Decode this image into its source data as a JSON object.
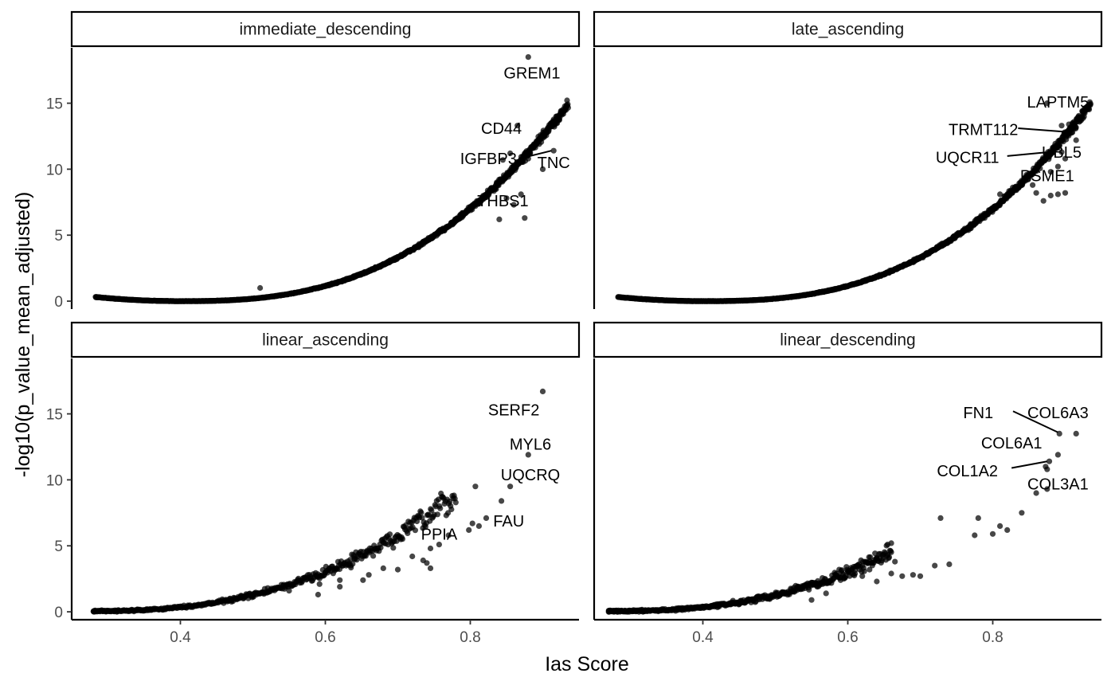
{
  "chart_data": {
    "type": "scatter",
    "facet_layout": "2x2",
    "x_label": "Ias Score",
    "y_label": "-log10(p_value_mean_adjusted)",
    "xlim": [
      0.25,
      0.95
    ],
    "ylim": [
      -0.6,
      19.2
    ],
    "x_ticks": [
      0.4,
      0.6,
      0.8
    ],
    "y_ticks": [
      0,
      5,
      10,
      15
    ],
    "x_tick_labels": [
      "0.4",
      "0.6",
      "0.8"
    ],
    "y_tick_labels": [
      "0",
      "5",
      "10",
      "15"
    ],
    "grid": false,
    "point_color": "#000000",
    "panels": [
      {
        "name": "immediate_descending",
        "shape": "u-curve",
        "curve": {
          "x_start": 0.283,
          "x_end": 0.935,
          "count": 1300,
          "jitter": 0.06
        },
        "highlights": [
          [
            0.88,
            18.5
          ],
          [
            0.865,
            13.3
          ],
          [
            0.845,
            10.7
          ],
          [
            0.855,
            11.2
          ],
          [
            0.895,
            11.9
          ],
          [
            0.915,
            11.4
          ],
          [
            0.88,
            10.8
          ],
          [
            0.9,
            10.0
          ],
          [
            0.51,
            1.0
          ],
          [
            0.87,
            8.1
          ],
          [
            0.85,
            7.8
          ],
          [
            0.86,
            7.3
          ],
          [
            0.84,
            6.2
          ],
          [
            0.875,
            6.3
          ]
        ],
        "labels": [
          {
            "text": "GREM1",
            "x": 0.885,
            "y": 17.3
          },
          {
            "text": "CD44",
            "x": 0.843,
            "y": 13.1
          },
          {
            "text": "IGFBP3",
            "x": 0.825,
            "y": 10.8
          },
          {
            "text": "TNC",
            "x": 0.915,
            "y": 10.5
          },
          {
            "text": "THBS1",
            "x": 0.845,
            "y": 7.6
          }
        ]
      },
      {
        "name": "late_ascending",
        "shape": "u-curve",
        "curve": {
          "x_start": 0.283,
          "x_end": 0.935,
          "count": 1300,
          "jitter": 0.06
        },
        "highlights": [
          [
            0.875,
            15.0
          ],
          [
            0.895,
            13.3
          ],
          [
            0.905,
            13.4
          ],
          [
            0.91,
            12.8
          ],
          [
            0.915,
            12.2
          ],
          [
            0.88,
            11.2
          ],
          [
            0.895,
            11.3
          ],
          [
            0.89,
            10.2
          ],
          [
            0.9,
            10.8
          ],
          [
            0.88,
            9.8
          ],
          [
            0.855,
            8.8
          ],
          [
            0.86,
            8.2
          ],
          [
            0.88,
            8.0
          ],
          [
            0.89,
            8.1
          ],
          [
            0.9,
            8.2
          ],
          [
            0.81,
            8.1
          ],
          [
            0.87,
            7.6
          ]
        ],
        "labels": [
          {
            "text": "LAPTM5",
            "x": 0.89,
            "y": 15.1
          },
          {
            "text": "TRMT112",
            "x": 0.787,
            "y": 13.0
          },
          {
            "text": "UBL5",
            "x": 0.895,
            "y": 11.3
          },
          {
            "text": "UQCR11",
            "x": 0.765,
            "y": 10.9
          },
          {
            "text": "PSME1",
            "x": 0.875,
            "y": 9.5
          }
        ]
      },
      {
        "name": "linear_ascending",
        "shape": "sparse-rise",
        "curve": {
          "x_start": 0.28,
          "x_end": 0.78,
          "count": 520,
          "jitter": 0.25
        },
        "highlights": [
          [
            0.9,
            16.7
          ],
          [
            0.88,
            11.9
          ],
          [
            0.855,
            9.5
          ],
          [
            0.807,
            9.5
          ],
          [
            0.843,
            8.4
          ],
          [
            0.822,
            7.1
          ],
          [
            0.803,
            6.7
          ],
          [
            0.812,
            6.5
          ],
          [
            0.798,
            6.2
          ],
          [
            0.77,
            5.8
          ],
          [
            0.757,
            5.1
          ],
          [
            0.745,
            4.8
          ],
          [
            0.72,
            4.2
          ],
          [
            0.735,
            3.9
          ],
          [
            0.745,
            3.3
          ],
          [
            0.74,
            3.7
          ],
          [
            0.7,
            3.2
          ],
          [
            0.62,
            2.4
          ],
          [
            0.64,
            4.0
          ],
          [
            0.635,
            3.5
          ],
          [
            0.652,
            2.4
          ],
          [
            0.66,
            2.8
          ],
          [
            0.68,
            3.3
          ],
          [
            0.592,
            2.1
          ],
          [
            0.59,
            1.3
          ],
          [
            0.62,
            1.9
          ],
          [
            0.55,
            1.6
          ],
          [
            0.47,
            0.9
          ],
          [
            0.5,
            1.2
          ],
          [
            0.6,
            3.0
          ]
        ],
        "labels": [
          {
            "text": "SERF2",
            "x": 0.86,
            "y": 15.3
          },
          {
            "text": "MYL6",
            "x": 0.883,
            "y": 12.7
          },
          {
            "text": "UQCRQ",
            "x": 0.883,
            "y": 10.4
          },
          {
            "text": "FAU",
            "x": 0.853,
            "y": 6.9
          },
          {
            "text": "PPIA",
            "x": 0.757,
            "y": 5.9
          }
        ]
      },
      {
        "name": "linear_descending",
        "shape": "sparse-rise",
        "curve": {
          "x_start": 0.27,
          "x_end": 0.66,
          "count": 520,
          "jitter": 0.3
        },
        "highlights": [
          [
            0.915,
            13.5
          ],
          [
            0.892,
            13.5
          ],
          [
            0.89,
            11.9
          ],
          [
            0.878,
            11.4
          ],
          [
            0.873,
            11.0
          ],
          [
            0.875,
            10.8
          ],
          [
            0.875,
            9.3
          ],
          [
            0.86,
            9.0
          ],
          [
            0.84,
            7.5
          ],
          [
            0.81,
            6.5
          ],
          [
            0.8,
            5.9
          ],
          [
            0.82,
            6.2
          ],
          [
            0.78,
            7.1
          ],
          [
            0.775,
            5.8
          ],
          [
            0.728,
            7.1
          ],
          [
            0.69,
            2.8
          ],
          [
            0.7,
            2.7
          ],
          [
            0.72,
            3.5
          ],
          [
            0.74,
            3.6
          ],
          [
            0.66,
            5.2
          ],
          [
            0.655,
            5.1
          ],
          [
            0.665,
            3.8
          ],
          [
            0.64,
            4.1
          ],
          [
            0.63,
            3.2
          ],
          [
            0.66,
            2.9
          ],
          [
            0.675,
            2.7
          ],
          [
            0.62,
            2.7
          ],
          [
            0.6,
            3.1
          ],
          [
            0.61,
            2.9
          ],
          [
            0.64,
            2.3
          ],
          [
            0.59,
            2.4
          ],
          [
            0.565,
            2.1
          ],
          [
            0.57,
            1.4
          ],
          [
            0.51,
            1.5
          ],
          [
            0.55,
            0.9
          ]
        ],
        "labels": [
          {
            "text": "FN1",
            "x": 0.78,
            "y": 15.1
          },
          {
            "text": "COL6A3",
            "x": 0.89,
            "y": 15.1
          },
          {
            "text": "COL6A1",
            "x": 0.826,
            "y": 12.8
          },
          {
            "text": "COL1A2",
            "x": 0.765,
            "y": 10.7
          },
          {
            "text": "COL3A1",
            "x": 0.89,
            "y": 9.7
          }
        ]
      }
    ]
  }
}
